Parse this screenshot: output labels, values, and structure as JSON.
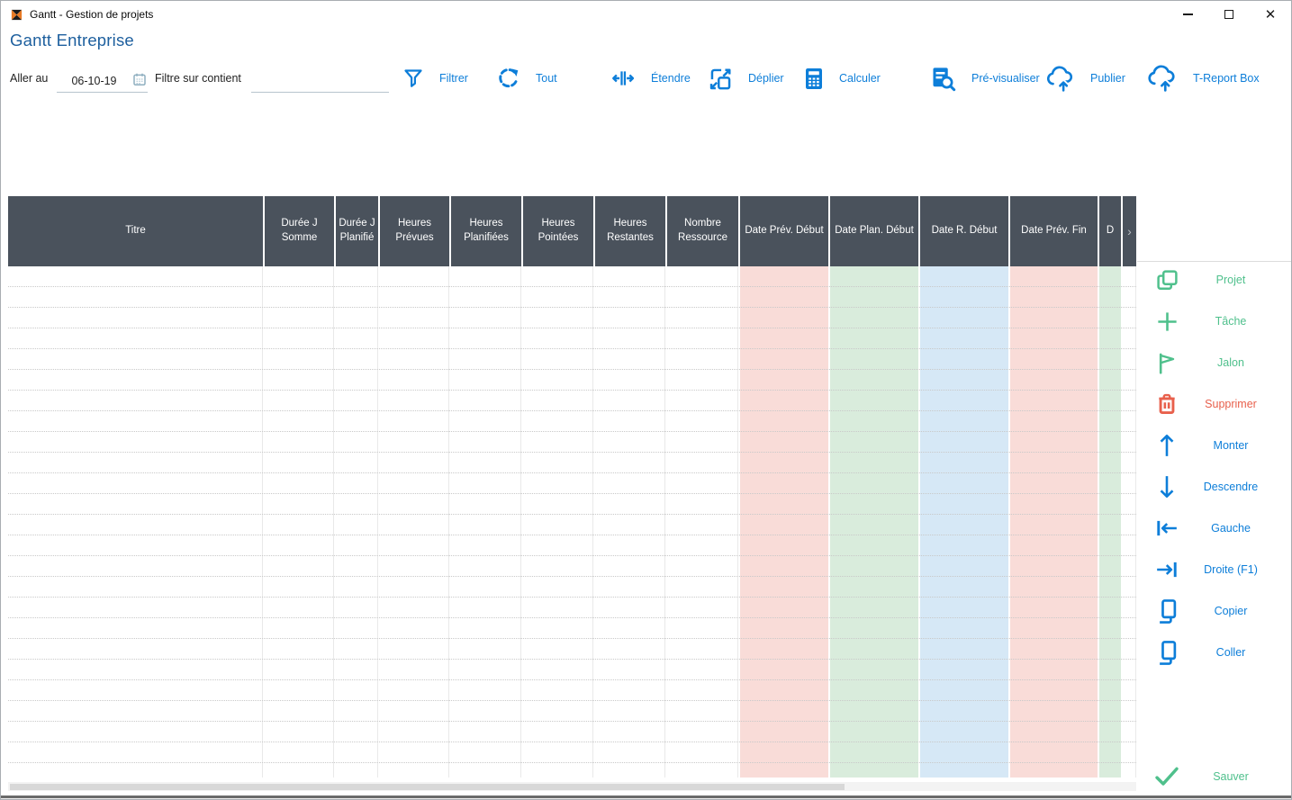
{
  "window": {
    "title": "Gantt - Gestion de projets",
    "controls": [
      {
        "icon": "minimize-icon"
      },
      {
        "icon": "maximize-icon"
      },
      {
        "icon": "close-icon"
      }
    ]
  },
  "header": {
    "app_title": "Gantt Entreprise"
  },
  "toolbar": {
    "goto_label": "Aller au",
    "date_value": "06-10-19",
    "date_icon": "calendar-icon",
    "filter_label": "Filtre sur contient",
    "filter_value": "",
    "buttons": [
      {
        "label": "Filtrer",
        "icon": "funnel-icon"
      },
      {
        "label": "Tout",
        "icon": "refresh-icon"
      },
      {
        "label": "Étendre",
        "icon": "expand-horizontal-icon"
      },
      {
        "label": "Déplier",
        "icon": "unfold-icon"
      },
      {
        "label": "Calculer",
        "icon": "calculator-icon"
      },
      {
        "label": "Pré-visualiser",
        "icon": "preview-icon"
      },
      {
        "label": "Publier",
        "icon": "cloud-upload-icon"
      },
      {
        "label": "T-Report Box",
        "icon": "cloud-upload-icon"
      }
    ]
  },
  "table": {
    "columns": [
      {
        "label": "Titre",
        "tint": null
      },
      {
        "label": "Durée J Somme",
        "tint": null
      },
      {
        "label": "Durée J Planifié",
        "tint": null
      },
      {
        "label": "Heures Prévues",
        "tint": null
      },
      {
        "label": "Heures Planifiées",
        "tint": null
      },
      {
        "label": "Heures Pointées",
        "tint": null
      },
      {
        "label": "Heures Restantes",
        "tint": null
      },
      {
        "label": "Nombre Ressource",
        "tint": null
      },
      {
        "label": "Date Prév. Début",
        "tint": "#f9dcd8"
      },
      {
        "label": "Date Plan. Début",
        "tint": "#d9ecdc"
      },
      {
        "label": "Date R. Début",
        "tint": "#d6e8f6"
      },
      {
        "label": "Date Prév. Fin",
        "tint": "#f9dcd8"
      },
      {
        "label": "D",
        "tint": "#d9ecdc",
        "clipped": true
      }
    ],
    "more_columns_indicator": "›",
    "visible_row_count": 24,
    "rows": []
  },
  "sidebar": {
    "buttons": [
      {
        "label": "Projet",
        "color": "green",
        "icon": "project-duplicate-icon"
      },
      {
        "label": "Tâche",
        "color": "green",
        "icon": "plus-icon"
      },
      {
        "label": "Jalon",
        "color": "green",
        "icon": "flag-icon"
      },
      {
        "label": "Supprimer",
        "color": "red",
        "icon": "trash-icon"
      },
      {
        "label": "Monter",
        "color": "blue",
        "icon": "arrow-up-icon"
      },
      {
        "label": "Descendre",
        "color": "blue",
        "icon": "arrow-down-icon"
      },
      {
        "label": "Gauche",
        "color": "blue",
        "icon": "arrow-left-bar-icon"
      },
      {
        "label": "Droite (F1)",
        "color": "blue",
        "icon": "arrow-right-bar-icon"
      },
      {
        "label": "Copier",
        "color": "blue",
        "icon": "copy-icon"
      },
      {
        "label": "Coller",
        "color": "blue",
        "icon": "paste-icon"
      }
    ],
    "save_button": {
      "label": "Sauver",
      "color": "green",
      "icon": "check-icon"
    }
  },
  "colors": {
    "accent_blue": "#0d7ed9",
    "accent_green": "#4fc08c",
    "accent_red": "#e8604c",
    "heading_blue": "#1d5f9e",
    "header_bg": "#4a525c",
    "tint_pink": "#f9dcd8",
    "tint_green": "#d9ecdc",
    "tint_blue": "#d6e8f6"
  }
}
